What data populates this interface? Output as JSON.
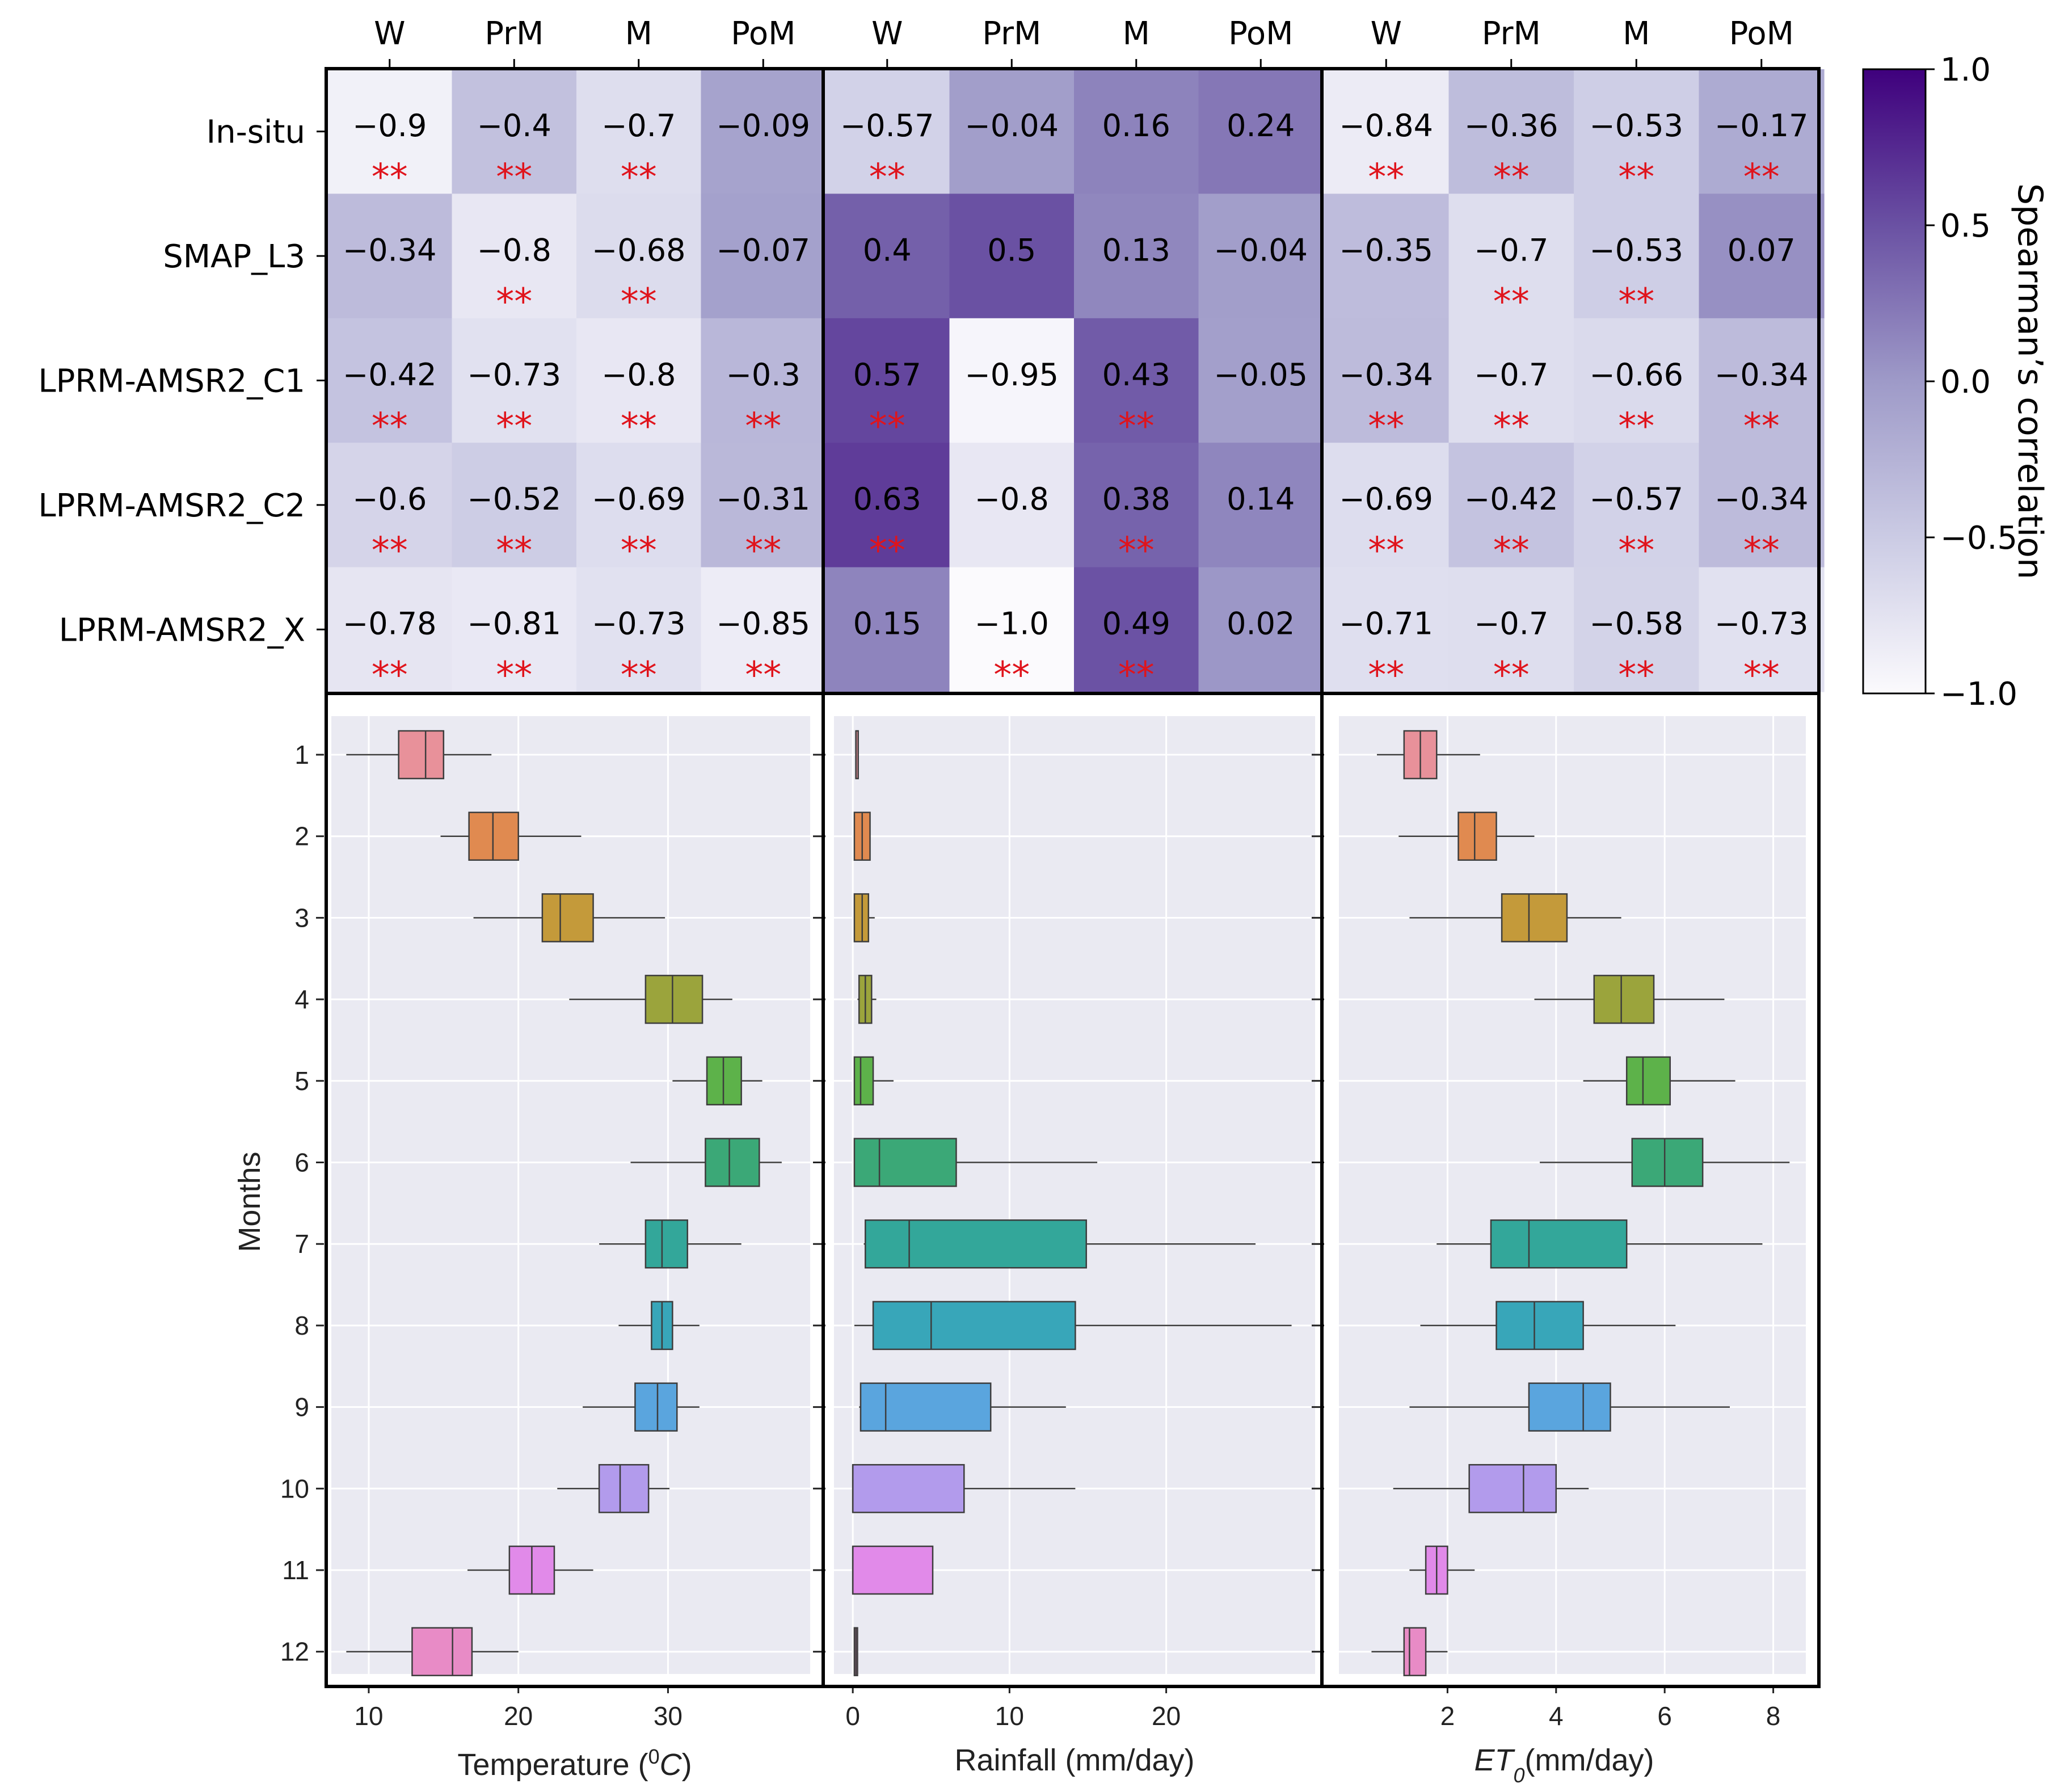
{
  "chart_data": [
    {
      "type": "heatmap",
      "panels": [
        "Temperature",
        "Rainfall",
        "ET0"
      ],
      "columns": [
        "W",
        "PrM",
        "M",
        "PoM"
      ],
      "rows": [
        "In-situ",
        "SMAP_L3",
        "LPRM-AMSR2_C1",
        "LPRM-AMSR2_C2",
        "LPRM-AMSR2_X"
      ],
      "values": [
        [
          [
            -0.9,
            -0.4,
            -0.7,
            -0.09
          ],
          [
            -0.57,
            -0.04,
            0.16,
            0.24
          ],
          [
            -0.84,
            -0.36,
            -0.53,
            -0.17
          ]
        ],
        [
          [
            -0.34,
            -0.8,
            -0.68,
            -0.07
          ],
          [
            0.4,
            0.5,
            0.13,
            -0.04
          ],
          [
            -0.35,
            -0.7,
            -0.53,
            0.07
          ]
        ],
        [
          [
            -0.42,
            -0.73,
            -0.8,
            -0.3
          ],
          [
            0.57,
            -0.95,
            0.43,
            -0.05
          ],
          [
            -0.34,
            -0.7,
            -0.66,
            -0.34
          ]
        ],
        [
          [
            -0.6,
            -0.52,
            -0.69,
            -0.31
          ],
          [
            0.63,
            -0.8,
            0.38,
            0.14
          ],
          [
            -0.69,
            -0.42,
            -0.57,
            -0.34
          ]
        ],
        [
          [
            -0.78,
            -0.81,
            -0.73,
            -0.85
          ],
          [
            0.15,
            -1.0,
            0.49,
            0.02
          ],
          [
            -0.71,
            -0.7,
            -0.58,
            -0.73
          ]
        ]
      ],
      "labels": [
        [
          [
            "−0.9",
            "−0.4",
            "−0.7",
            "−0.09"
          ],
          [
            "−0.57",
            "−0.04",
            "0.16",
            "0.24"
          ],
          [
            "−0.84",
            "−0.36",
            "−0.53",
            "−0.17"
          ]
        ],
        [
          [
            "−0.34",
            "−0.8",
            "−0.68",
            "−0.07"
          ],
          [
            "0.4",
            "0.5",
            "0.13",
            "−0.04"
          ],
          [
            "−0.35",
            "−0.7",
            "−0.53",
            "0.07"
          ]
        ],
        [
          [
            "−0.42",
            "−0.73",
            "−0.8",
            "−0.3"
          ],
          [
            "0.57",
            "−0.95",
            "0.43",
            "−0.05"
          ],
          [
            "−0.34",
            "−0.7",
            "−0.66",
            "−0.34"
          ]
        ],
        [
          [
            "−0.6",
            "−0.52",
            "−0.69",
            "−0.31"
          ],
          [
            "0.63",
            "−0.8",
            "0.38",
            "0.14"
          ],
          [
            "−0.69",
            "−0.42",
            "−0.57",
            "−0.34"
          ]
        ],
        [
          [
            "−0.78",
            "−0.81",
            "−0.73",
            "−0.85"
          ],
          [
            "0.15",
            "−1.0",
            "0.49",
            "0.02"
          ],
          [
            "−0.71",
            "−0.7",
            "−0.58",
            "−0.73"
          ]
        ]
      ],
      "significance": [
        [
          [
            true,
            true,
            true,
            false
          ],
          [
            true,
            false,
            false,
            false
          ],
          [
            true,
            true,
            true,
            true
          ]
        ],
        [
          [
            false,
            true,
            true,
            false
          ],
          [
            false,
            false,
            false,
            false
          ],
          [
            false,
            true,
            true,
            false
          ]
        ],
        [
          [
            true,
            true,
            true,
            true
          ],
          [
            true,
            false,
            true,
            false
          ],
          [
            true,
            true,
            true,
            true
          ]
        ],
        [
          [
            true,
            true,
            true,
            true
          ],
          [
            true,
            false,
            true,
            false
          ],
          [
            true,
            true,
            true,
            true
          ]
        ],
        [
          [
            true,
            true,
            true,
            true
          ],
          [
            false,
            true,
            true,
            false
          ],
          [
            true,
            true,
            true,
            true
          ]
        ]
      ],
      "significance_marker": "**",
      "colorbar": {
        "title": "Spearman’s correlation",
        "range": [
          -1.0,
          1.0
        ],
        "ticks": [
          -1.0,
          -0.5,
          0.0,
          0.5,
          1.0
        ],
        "tick_labels": [
          "−1.0",
          "−0.5",
          "0.0",
          "0.5",
          "1.0"
        ],
        "colors": [
          "#fbfafd",
          "#cbcbe4",
          "#9e9ac8",
          "#6a51a3",
          "#3f007d"
        ]
      }
    },
    {
      "type": "boxplot",
      "orientation": "horizontal",
      "ylabel": "Months",
      "categories": [
        "1",
        "2",
        "3",
        "4",
        "5",
        "6",
        "7",
        "8",
        "9",
        "10",
        "11",
        "12"
      ],
      "colors": [
        "#e8919a",
        "#e08a50",
        "#c49a3a",
        "#9ba43c",
        "#5db24a",
        "#3ba877",
        "#33a79a",
        "#38a6b9",
        "#5aa5de",
        "#b29bec",
        "#e18ae9",
        "#e88bc6"
      ],
      "panels": [
        {
          "name": "temperature",
          "xlabel_prefix": "Temperature (",
          "xlabel_sup": "0",
          "xlabel_unit": "C",
          "xlabel_suffix": ")",
          "xlim": [
            7.5,
            39.5
          ],
          "xticks": [
            10,
            20,
            30
          ],
          "boxes": [
            {
              "month": "1",
              "whislo": 8.5,
              "q1": 12.0,
              "med": 13.8,
              "q3": 15.0,
              "whishi": 18.2
            },
            {
              "month": "2",
              "whislo": 14.8,
              "q1": 16.7,
              "med": 18.3,
              "q3": 20.0,
              "whishi": 24.2
            },
            {
              "month": "3",
              "whislo": 17.0,
              "q1": 21.6,
              "med": 22.8,
              "q3": 25.0,
              "whishi": 29.8
            },
            {
              "month": "4",
              "whislo": 23.4,
              "q1": 28.5,
              "med": 30.3,
              "q3": 32.3,
              "whishi": 34.3
            },
            {
              "month": "5",
              "whislo": 30.3,
              "q1": 32.6,
              "med": 33.7,
              "q3": 34.9,
              "whishi": 36.3
            },
            {
              "month": "6",
              "whislo": 27.5,
              "q1": 32.5,
              "med": 34.1,
              "q3": 36.1,
              "whishi": 37.6
            },
            {
              "month": "7",
              "whislo": 25.4,
              "q1": 28.5,
              "med": 29.6,
              "q3": 31.3,
              "whishi": 34.9
            },
            {
              "month": "8",
              "whislo": 26.7,
              "q1": 28.9,
              "med": 29.6,
              "q3": 30.3,
              "whishi": 32.1
            },
            {
              "month": "9",
              "whislo": 24.3,
              "q1": 27.8,
              "med": 29.3,
              "q3": 30.6,
              "whishi": 32.1
            },
            {
              "month": "10",
              "whislo": 22.6,
              "q1": 25.4,
              "med": 26.8,
              "q3": 28.7,
              "whishi": 30.1
            },
            {
              "month": "11",
              "whislo": 16.6,
              "q1": 19.4,
              "med": 20.9,
              "q3": 22.4,
              "whishi": 25.0
            },
            {
              "month": "12",
              "whislo": 8.5,
              "q1": 12.9,
              "med": 15.6,
              "q3": 16.9,
              "whishi": 20.0
            }
          ]
        },
        {
          "name": "rainfall",
          "xlabel": "Rainfall (mm/day)",
          "xlim": [
            -1.2,
            29.5
          ],
          "xticks": [
            0,
            10,
            20
          ],
          "boxes": [
            {
              "month": "1",
              "whislo": 0.2,
              "q1": 0.2,
              "med": 0.2,
              "q3": 0.2,
              "whishi": 0.2
            },
            {
              "month": "2",
              "whislo": 0.1,
              "q1": 0.1,
              "med": 0.6,
              "q3": 1.1,
              "whishi": 1.1
            },
            {
              "month": "3",
              "whislo": 0.1,
              "q1": 0.1,
              "med": 0.6,
              "q3": 1.0,
              "whishi": 1.4
            },
            {
              "month": "4",
              "whislo": 0.3,
              "q1": 0.4,
              "med": 0.8,
              "q3": 1.2,
              "whishi": 1.5
            },
            {
              "month": "5",
              "whislo": 0.1,
              "q1": 0.1,
              "med": 0.5,
              "q3": 1.3,
              "whishi": 2.6
            },
            {
              "month": "6",
              "whislo": 0.1,
              "q1": 0.1,
              "med": 1.7,
              "q3": 6.6,
              "whishi": 15.6
            },
            {
              "month": "7",
              "whislo": 0.7,
              "q1": 0.8,
              "med": 3.6,
              "q3": 14.9,
              "whishi": 25.7
            },
            {
              "month": "8",
              "whislo": 0.1,
              "q1": 1.3,
              "med": 5.0,
              "q3": 14.2,
              "whishi": 28.0
            },
            {
              "month": "9",
              "whislo": 0.4,
              "q1": 0.5,
              "med": 2.1,
              "q3": 8.8,
              "whishi": 13.6
            },
            {
              "month": "10",
              "whislo": 0.0,
              "q1": 0.0,
              "med": 0.0,
              "q3": 7.1,
              "whishi": 14.2
            },
            {
              "month": "11",
              "whislo": 0.0,
              "q1": 0.0,
              "med": 0.0,
              "q3": 5.1,
              "whishi": 5.1
            },
            {
              "month": "12",
              "whislo": 0.1,
              "q1": 0.1,
              "med": 0.2,
              "q3": 0.3,
              "whishi": 0.3
            }
          ]
        },
        {
          "name": "et0",
          "xlabel_prefix": "ET",
          "xlabel_sub": "0",
          "xlabel_suffix": "(mm/day)",
          "xlim": [
            0.0,
            8.6
          ],
          "xticks": [
            2,
            4,
            6,
            8
          ],
          "boxes": [
            {
              "month": "1",
              "whislo": 0.7,
              "q1": 1.2,
              "med": 1.5,
              "q3": 1.8,
              "whishi": 2.6
            },
            {
              "month": "2",
              "whislo": 1.1,
              "q1": 2.2,
              "med": 2.5,
              "q3": 2.9,
              "whishi": 3.6
            },
            {
              "month": "3",
              "whislo": 1.3,
              "q1": 3.0,
              "med": 3.5,
              "q3": 4.2,
              "whishi": 5.2
            },
            {
              "month": "4",
              "whislo": 3.6,
              "q1": 4.7,
              "med": 5.2,
              "q3": 5.8,
              "whishi": 7.1
            },
            {
              "month": "5",
              "whislo": 4.5,
              "q1": 5.3,
              "med": 5.6,
              "q3": 6.1,
              "whishi": 7.3
            },
            {
              "month": "6",
              "whislo": 3.7,
              "q1": 5.4,
              "med": 6.0,
              "q3": 6.7,
              "whishi": 8.3
            },
            {
              "month": "7",
              "whislo": 1.8,
              "q1": 2.8,
              "med": 3.5,
              "q3": 5.3,
              "whishi": 7.8
            },
            {
              "month": "8",
              "whislo": 1.5,
              "q1": 2.9,
              "med": 3.6,
              "q3": 4.5,
              "whishi": 6.2
            },
            {
              "month": "9",
              "whislo": 1.3,
              "q1": 3.5,
              "med": 4.5,
              "q3": 5.0,
              "whishi": 7.2
            },
            {
              "month": "10",
              "whislo": 1.0,
              "q1": 2.4,
              "med": 3.4,
              "q3": 4.0,
              "whishi": 4.6
            },
            {
              "month": "11",
              "whislo": 1.3,
              "q1": 1.6,
              "med": 1.8,
              "q3": 2.0,
              "whishi": 2.5
            },
            {
              "month": "12",
              "whislo": 0.6,
              "q1": 1.2,
              "med": 1.3,
              "q3": 1.6,
              "whishi": 2.0
            }
          ]
        }
      ]
    }
  ]
}
